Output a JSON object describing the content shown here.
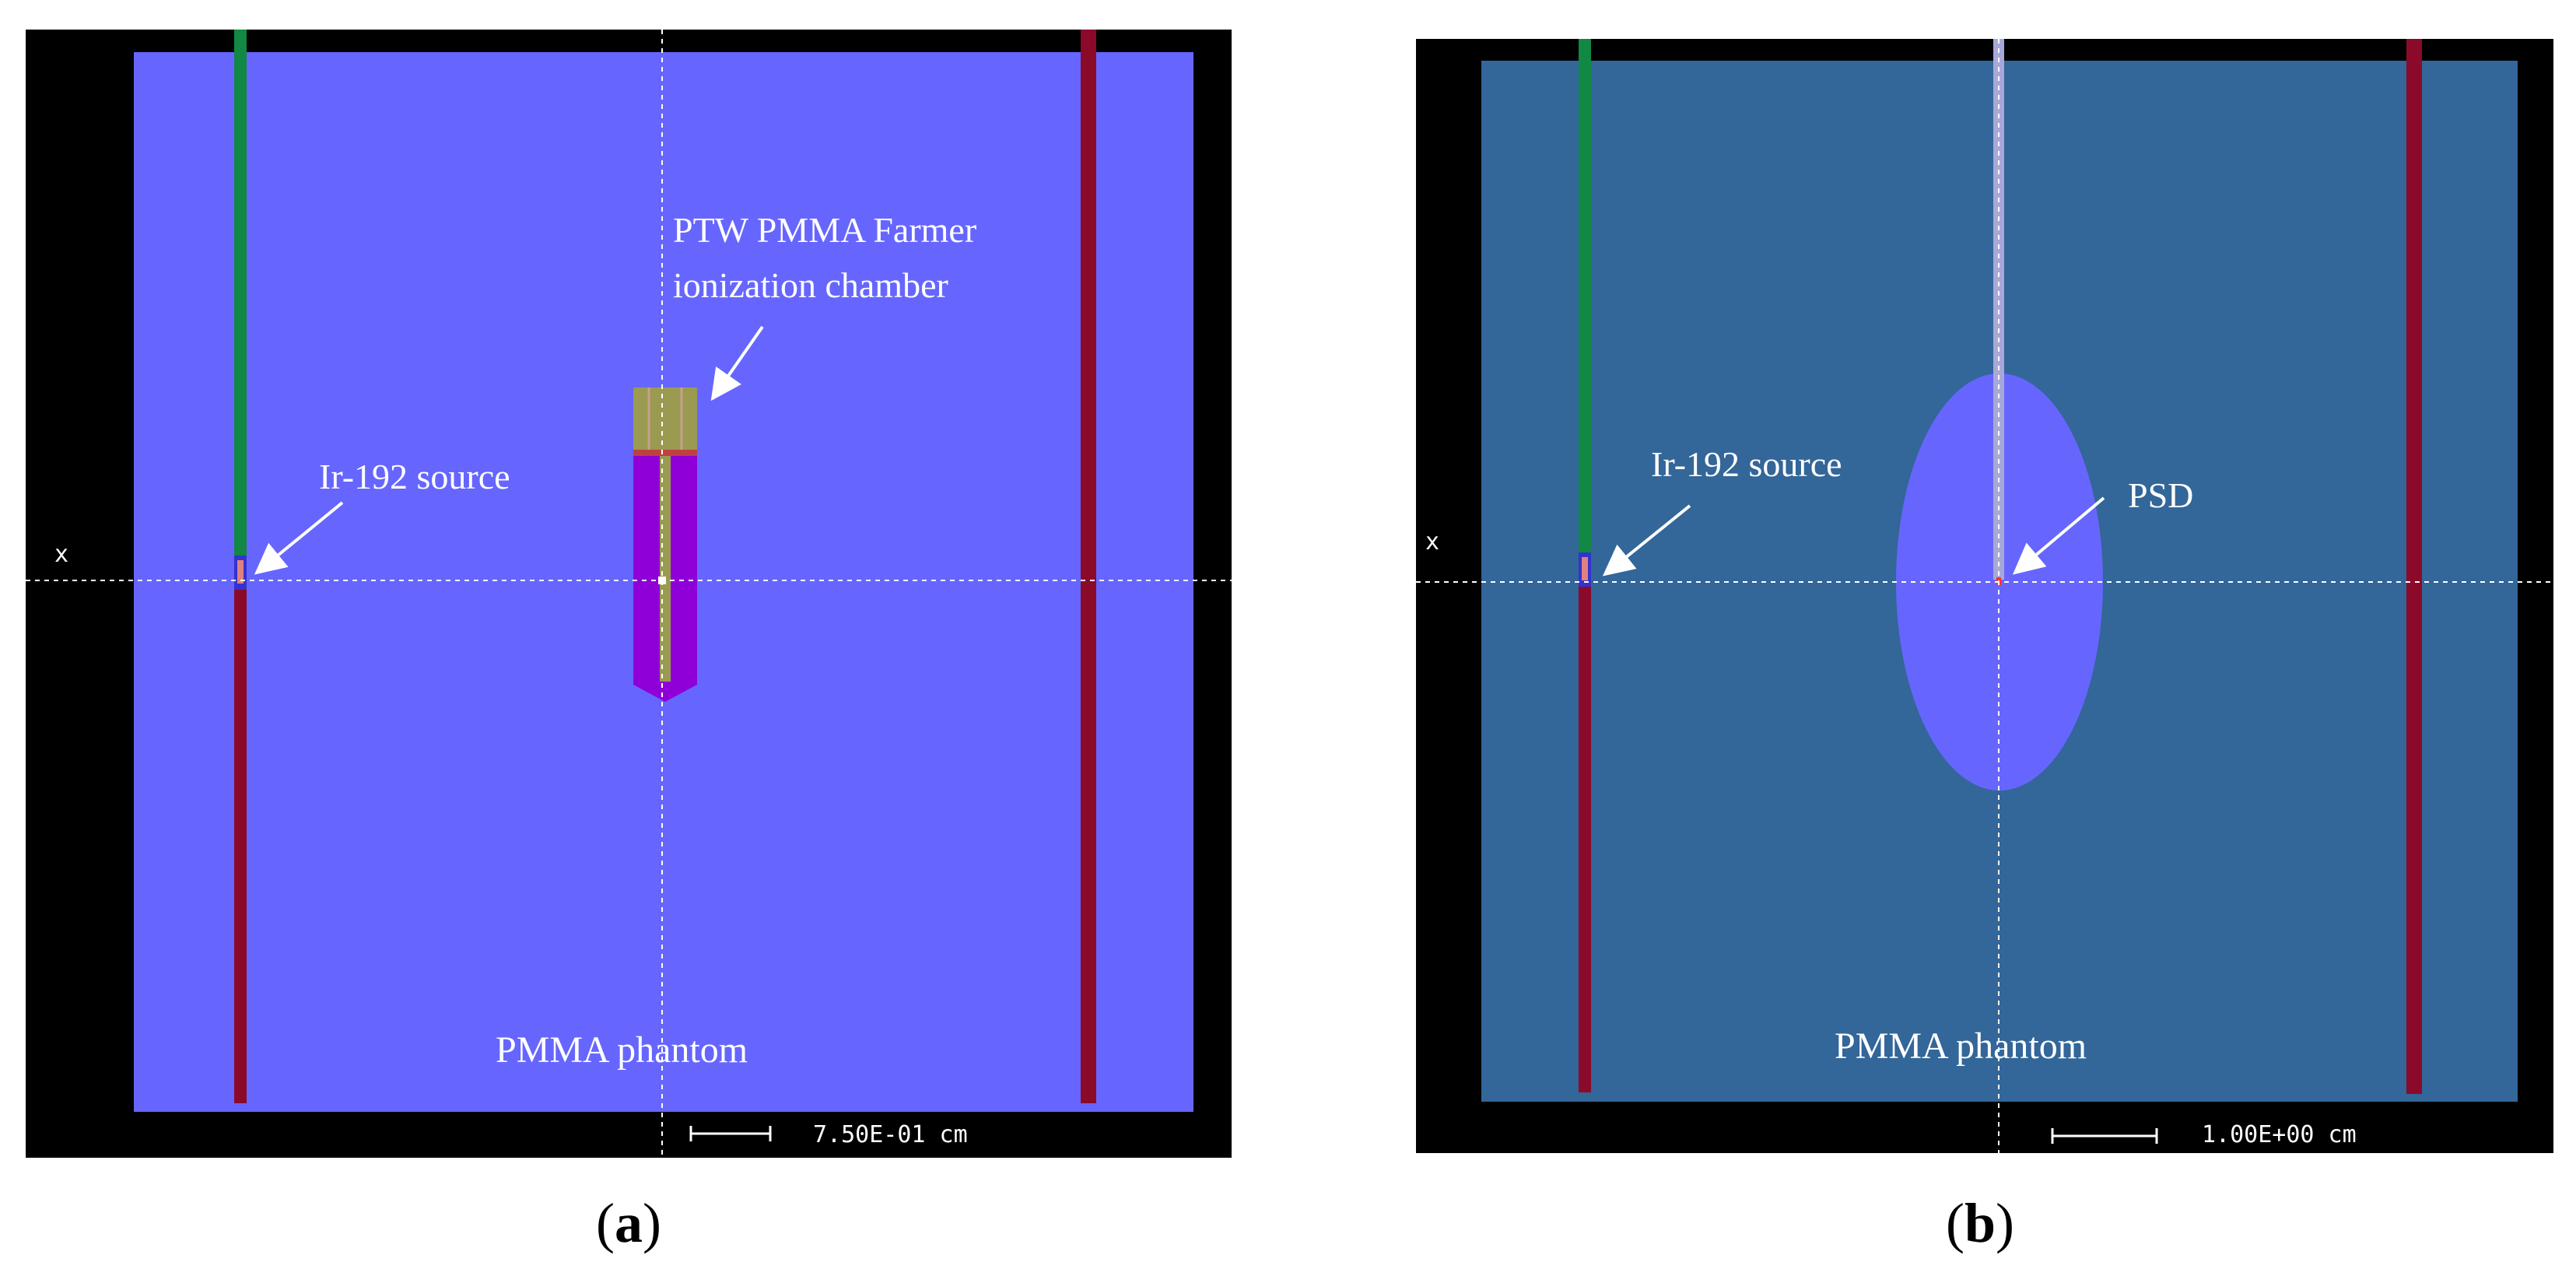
{
  "colors": {
    "background": "#ffffff",
    "frame_black": "#000000",
    "phantom_a": "#6666ff",
    "phantom_b": "#336699",
    "psd_ellipse": "#6666ff",
    "catheter_green": "#118844",
    "catheter_red": "#8b0a2a",
    "chamber_body": "#8f00d8",
    "chamber_stem": "#9a9a50",
    "crosshair": "#ffffff",
    "label_text": "#ffffff",
    "caption_text": "#000000"
  },
  "panels": {
    "a": {
      "caption_open": "(",
      "caption_letter": "a",
      "caption_close": ")",
      "axis_marker": "x",
      "labels": {
        "chamber_line1": "PTW PMMA Farmer",
        "chamber_line2": "ionization chamber",
        "source": "Ir-192 source",
        "phantom": "PMMA phantom"
      },
      "scale_text": "7.50E-01 cm"
    },
    "b": {
      "caption_open": "(",
      "caption_letter": "b",
      "caption_close": ")",
      "axis_marker": "x",
      "labels": {
        "source": "Ir-192 source",
        "detector": "PSD",
        "phantom": "PMMA phantom"
      },
      "scale_text": "1.00E+00 cm"
    }
  }
}
